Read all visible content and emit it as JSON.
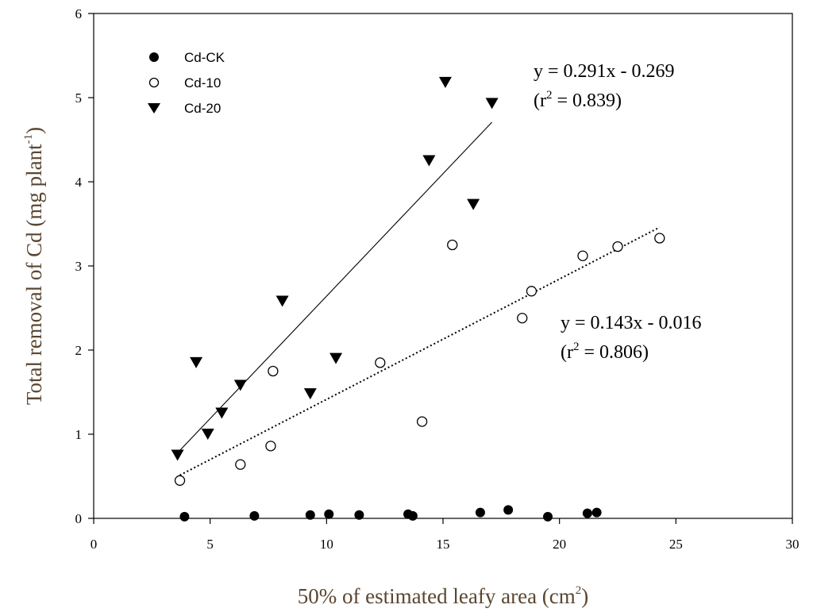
{
  "chart_data": {
    "type": "scatter",
    "title": "",
    "xlabel": {
      "main": "50% of estimated leafy area (cm",
      "sup": "2",
      "end": ")"
    },
    "ylabel": {
      "main": "Total removal of Cd (mg plant",
      "sup": "-1",
      "end": ")"
    },
    "xlim": [
      0,
      30
    ],
    "ylim": [
      0,
      6
    ],
    "xticks": [
      0,
      5,
      10,
      15,
      20,
      25,
      30
    ],
    "yticks": [
      0,
      1,
      2,
      3,
      4,
      5,
      6
    ],
    "grid": false,
    "legend_position": "top-left",
    "series": [
      {
        "name": "Cd-CK",
        "marker": "filled-circle",
        "points": [
          [
            3.9,
            0.02
          ],
          [
            6.9,
            0.03
          ],
          [
            9.3,
            0.04
          ],
          [
            10.1,
            0.05
          ],
          [
            11.4,
            0.04
          ],
          [
            13.5,
            0.05
          ],
          [
            13.7,
            0.03
          ],
          [
            16.6,
            0.07
          ],
          [
            17.8,
            0.1
          ],
          [
            19.5,
            0.02
          ],
          [
            21.2,
            0.06
          ],
          [
            21.6,
            0.07
          ]
        ]
      },
      {
        "name": "Cd-10",
        "marker": "open-circle",
        "points": [
          [
            3.7,
            0.45
          ],
          [
            6.3,
            0.64
          ],
          [
            7.6,
            0.86
          ],
          [
            7.7,
            1.75
          ],
          [
            12.3,
            1.85
          ],
          [
            14.1,
            1.15
          ],
          [
            15.4,
            3.25
          ],
          [
            18.4,
            2.38
          ],
          [
            18.8,
            2.7
          ],
          [
            21.0,
            3.12
          ],
          [
            22.5,
            3.23
          ],
          [
            24.3,
            3.33
          ]
        ],
        "fit": {
          "slope": 0.143,
          "intercept": -0.016,
          "x_range": [
            3.7,
            24.3
          ],
          "style": "dotted"
        },
        "equation": "y = 0.143x - 0.016",
        "r2": "0.806"
      },
      {
        "name": "Cd-20",
        "marker": "filled-down-triangle",
        "points": [
          [
            3.6,
            0.75
          ],
          [
            4.4,
            1.85
          ],
          [
            4.9,
            1.0
          ],
          [
            5.5,
            1.25
          ],
          [
            6.3,
            1.58
          ],
          [
            8.1,
            2.58
          ],
          [
            9.3,
            1.48
          ],
          [
            10.4,
            1.9
          ],
          [
            14.4,
            4.25
          ],
          [
            15.1,
            5.18
          ],
          [
            16.3,
            3.73
          ],
          [
            17.1,
            4.93
          ]
        ],
        "fit": {
          "slope": 0.291,
          "intercept": -0.269,
          "x_range": [
            3.6,
            17.1
          ],
          "style": "solid"
        },
        "equation": "y = 0.291x - 0.269",
        "r2": "0.839"
      }
    ]
  }
}
